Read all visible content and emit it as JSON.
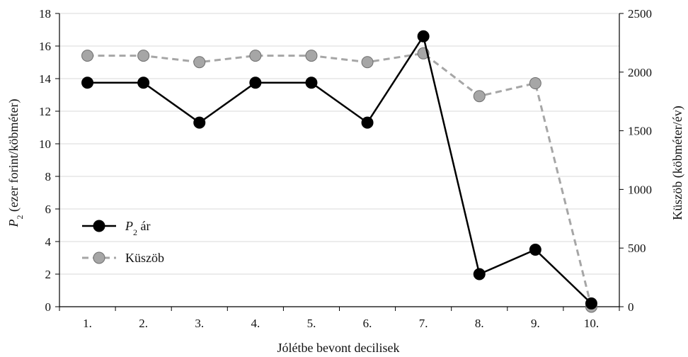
{
  "chart_data": {
    "type": "line",
    "categories": [
      "1.",
      "2.",
      "3.",
      "4.",
      "5.",
      "6.",
      "7.",
      "8.",
      "9.",
      "10."
    ],
    "xlabel": "Jólétbe bevont decilisek",
    "ylabel_left": {
      "var": "P",
      "sub": "2",
      "text": " (ezer forint/köbméter)"
    },
    "ylabel_right": "Küszöb (köbméter/év)",
    "ylim_left": [
      0,
      18
    ],
    "yticks_left": [
      0,
      2,
      4,
      6,
      8,
      10,
      12,
      14,
      16,
      18
    ],
    "ylim_right": [
      0,
      2500
    ],
    "yticks_right": [
      0,
      500,
      1000,
      1500,
      2000,
      2500
    ],
    "grid": "horizontal",
    "legend_position": "center-left",
    "series": [
      {
        "name": "ár",
        "name_prefix": {
          "var": "P",
          "sub": "2"
        },
        "axis": "left",
        "style": "solid",
        "line_color": "#000000",
        "marker_color": "#000000",
        "values": [
          13.75,
          13.75,
          11.3,
          13.75,
          13.75,
          11.3,
          16.6,
          2.0,
          3.5,
          0.2
        ]
      },
      {
        "name": "Küszöb",
        "axis": "right",
        "style": "dashed",
        "line_color": "#a6a6a6",
        "marker_color": "#a6a6a6",
        "values": [
          2140,
          2140,
          2085,
          2140,
          2140,
          2085,
          2160,
          1795,
          1905,
          0
        ]
      }
    ]
  }
}
